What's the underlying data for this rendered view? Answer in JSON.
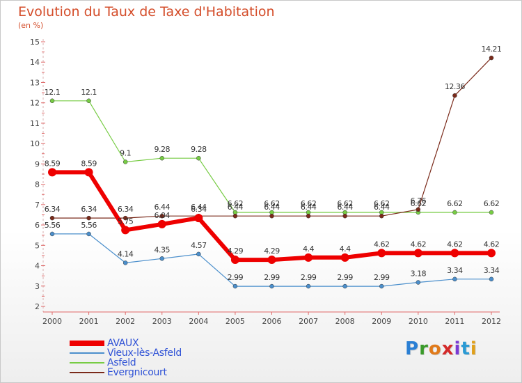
{
  "title": "Evolution du Taux de Taxe d'Habitation",
  "unit_label": "(en %)",
  "logo": {
    "text": "Proxiti",
    "letter_colors": [
      "#2a7fd4",
      "#3a9a2a",
      "#e07a1a",
      "#d42a2a",
      "#7a3ad4",
      "#2a9ad4",
      "#e0a01a"
    ]
  },
  "chart_data": {
    "type": "line",
    "title": "Evolution du Taux de Taxe d'Habitation",
    "ylabel": "(en %)",
    "xlabel": "",
    "x": [
      "2000",
      "2001",
      "2002",
      "2003",
      "2004",
      "2005",
      "2006",
      "2007",
      "2008",
      "2009",
      "2010",
      "2011",
      "2012"
    ],
    "ylim": [
      2,
      15
    ],
    "yticks": [
      2,
      3,
      4,
      5,
      6,
      7,
      8,
      9,
      10,
      11,
      12,
      13,
      14,
      15
    ],
    "grid": false,
    "legend_position": "bottom-left",
    "series": [
      {
        "name": "AVAUX",
        "color": "#ee0000",
        "values": [
          8.59,
          8.59,
          5.75,
          6.04,
          6.34,
          4.29,
          4.29,
          4.4,
          4.4,
          4.62,
          4.62,
          4.62,
          4.62
        ],
        "labels": [
          "8.59",
          "8.59",
          "5.75",
          "6.04",
          "6.34",
          "4.29",
          "4.29",
          "4.4",
          "4.4",
          "4.62",
          "4.62",
          "4.62",
          "4.62"
        ]
      },
      {
        "name": "Vieux-lès-Asfeld",
        "color": "#4b8fcc",
        "values": [
          5.56,
          5.56,
          4.14,
          4.35,
          4.57,
          2.99,
          2.99,
          2.99,
          2.99,
          2.99,
          3.18,
          3.34,
          3.34
        ],
        "labels": [
          "5.56",
          "5.56",
          "4.14",
          "4.35",
          "4.57",
          "2.99",
          "2.99",
          "2.99",
          "2.99",
          "2.99",
          "3.18",
          "3.34",
          "3.34"
        ]
      },
      {
        "name": "Asfeld",
        "color": "#77cc44",
        "values": [
          12.1,
          12.1,
          9.1,
          9.28,
          9.28,
          6.62,
          6.62,
          6.62,
          6.62,
          6.62,
          6.62,
          6.62,
          6.62
        ],
        "labels": [
          "12.1",
          "12.1",
          "9.1",
          "9.28",
          "9.28",
          "6.62",
          "6.62",
          "6.62",
          "6.62",
          "6.62",
          "6.62",
          "6.62",
          "6.62"
        ]
      },
      {
        "name": "Evergnicourt",
        "color": "#7a2a1a",
        "values": [
          6.34,
          6.34,
          6.34,
          6.44,
          6.44,
          6.44,
          6.44,
          6.44,
          6.44,
          6.44,
          6.76,
          12.36,
          14.21
        ],
        "labels": [
          "6.34",
          "6.34",
          "6.34",
          "6.44",
          "6.44",
          "6.44",
          "6.44",
          "6.44",
          "6.44",
          "6.44",
          "6.76",
          "12.36",
          "14.21"
        ]
      }
    ]
  }
}
